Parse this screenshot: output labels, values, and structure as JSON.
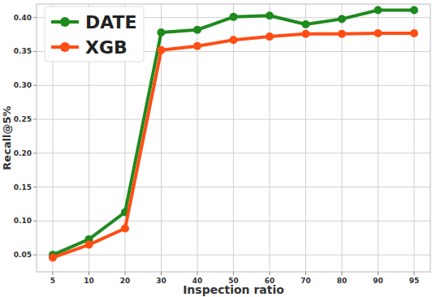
{
  "chart_data": {
    "type": "line",
    "x_label": "Inspection ratio",
    "y_label": "Recall@5%",
    "categories": [
      "5",
      "10",
      "20",
      "30",
      "40",
      "50",
      "60",
      "70",
      "80",
      "90",
      "95"
    ],
    "series": [
      {
        "name": "DATE",
        "color": "#1e8a1e",
        "marker": "circle",
        "values": [
          0.05,
          0.073,
          0.113,
          0.378,
          0.382,
          0.401,
          0.403,
          0.39,
          0.398,
          0.411,
          0.411
        ]
      },
      {
        "name": "XGB",
        "color": "#ff4d14",
        "marker": "circle",
        "values": [
          0.046,
          0.065,
          0.089,
          0.352,
          0.358,
          0.367,
          0.372,
          0.376,
          0.376,
          0.377,
          0.377
        ]
      }
    ],
    "ylim": [
      0.025,
      0.42
    ],
    "yticks": [
      0.05,
      {
        "value": 0.1,
        "label": "0.10"
      },
      0.15,
      {
        "value": 0.2,
        "label": "0.20"
      },
      0.25,
      {
        "value": 0.3,
        "label": "0.30"
      },
      0.35,
      {
        "value": 0.4,
        "label": "0.40"
      }
    ],
    "grid": true,
    "legend": "upper left"
  }
}
